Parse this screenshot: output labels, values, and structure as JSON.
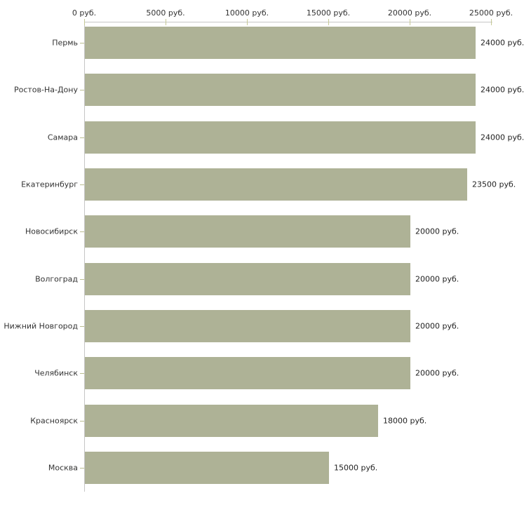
{
  "chart_data": {
    "type": "bar",
    "orientation": "horizontal",
    "title": "",
    "xlabel": "",
    "ylabel": "",
    "unit": "руб.",
    "xlim": [
      0,
      25000
    ],
    "grid": false,
    "legend": null,
    "categories": [
      "Пермь",
      "Ростов-На-Дону",
      "Самара",
      "Екатеринбург",
      "Новосибирск",
      "Волгоград",
      "Нижний Новгород",
      "Челябинск",
      "Красноярск",
      "Москва"
    ],
    "values": [
      24000,
      24000,
      24000,
      23500,
      20000,
      20000,
      20000,
      20000,
      18000,
      15000
    ],
    "value_labels": [
      "24000 руб.",
      "24000 руб.",
      "24000 руб.",
      "23500 руб.",
      "20000 руб.",
      "20000 руб.",
      "20000 руб.",
      "20000 руб.",
      "18000 руб.",
      "15000 руб."
    ],
    "x_tick_values": [
      0,
      5000,
      10000,
      15000,
      20000,
      25000
    ],
    "x_tick_labels": [
      "0 руб.",
      "5000 руб.",
      "10000 руб.",
      "15000 руб.",
      "20000 руб.",
      "25000 руб."
    ],
    "colors": {
      "bar": "#aeb296",
      "axis_line": "#c6c6c6",
      "x_tick": "#c6c996",
      "y_tick": "#babd90",
      "text": "#333333",
      "background": "#ffffff"
    }
  }
}
